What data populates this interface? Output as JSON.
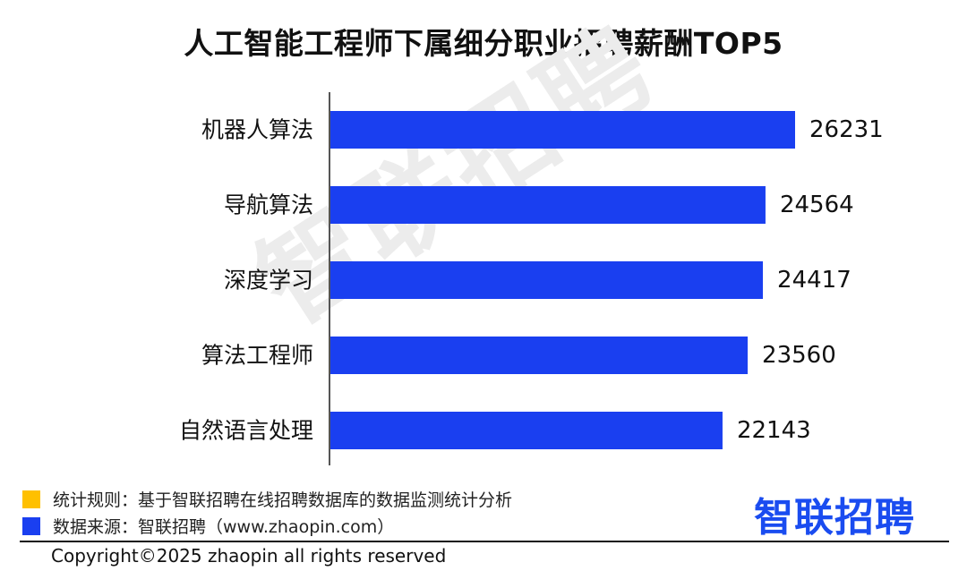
{
  "header": {
    "title": "人工智能工程师下属细分职业招聘薪酬TOP5"
  },
  "watermark": {
    "text": "智联招聘"
  },
  "chart_data": {
    "type": "bar",
    "orientation": "horizontal",
    "title": "人工智能工程师下属细分职业招聘薪酬TOP5",
    "categories": [
      "机器人算法",
      "导航算法",
      "深度学习",
      "算法工程师",
      "自然语言处理"
    ],
    "values": [
      26231,
      24564,
      24417,
      23560,
      22143
    ],
    "value_labels": [
      "26231",
      "24564",
      "24417",
      "23560",
      "22143"
    ],
    "xlim": [
      0,
      26231
    ],
    "xlabel": "",
    "ylabel": "",
    "grid": false,
    "legend": "none",
    "bar_color": "#1a3ff0"
  },
  "legend": {
    "items": [
      {
        "label": "统计规则：基于智联招聘在线招聘数据库的数据监测统计分析",
        "color": "#ffc000"
      },
      {
        "label": "数据来源：智联招聘（www.zhaopin.com）",
        "color": "#1a3ff0"
      }
    ]
  },
  "brand": {
    "logo_text": "智联招聘",
    "color": "#1a4cf0"
  },
  "footer": {
    "copyright": "Copyright©2025 zhaopin all rights reserved"
  }
}
